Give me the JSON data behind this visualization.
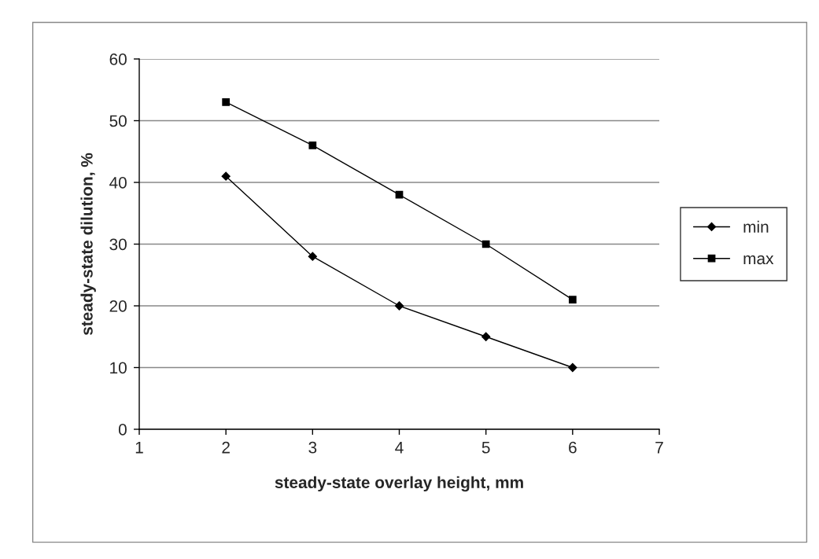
{
  "chart_data": {
    "type": "line",
    "xlabel": "steady-state overlay height, mm",
    "ylabel": "steady-state dilution, %",
    "x": [
      2,
      3,
      4,
      5,
      6
    ],
    "series": [
      {
        "name": "min",
        "color": "#000000",
        "marker": "diamond",
        "values": [
          41,
          28,
          20,
          15,
          10
        ]
      },
      {
        "name": "max",
        "color": "#000000",
        "marker": "square",
        "values": [
          53,
          46,
          38,
          30,
          21
        ]
      }
    ],
    "xlim": [
      1,
      7
    ],
    "xticks": [
      1,
      2,
      3,
      4,
      5,
      6,
      7
    ],
    "ylim": [
      0,
      60
    ],
    "yticks": [
      0,
      10,
      20,
      30,
      40,
      50,
      60
    ],
    "grid": "y",
    "legend": "right",
    "line_style": "solid"
  }
}
